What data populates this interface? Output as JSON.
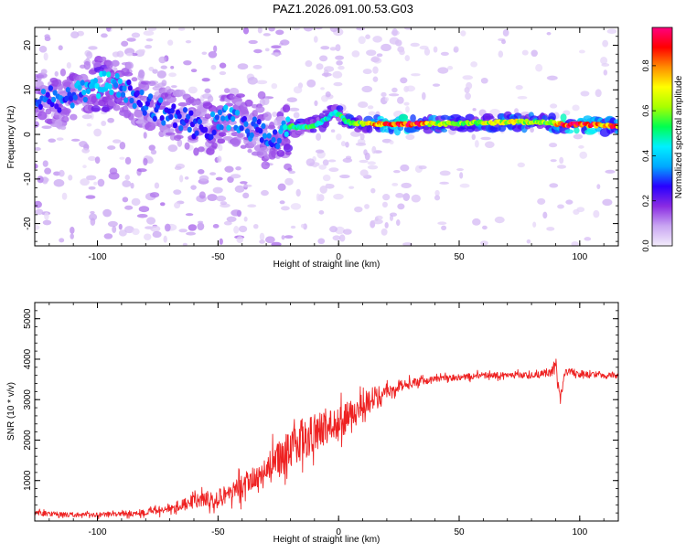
{
  "figure_title": "PAZ1.2026.091.00.53.G03",
  "chart_data": [
    {
      "type": "heatmap",
      "title": "PAZ1.2026.091.00.53.G03",
      "xlabel": "Height of straight line (km)",
      "ylabel": "Frequency (Hz)",
      "xlim": [
        -126,
        116
      ],
      "ylim": [
        -25,
        24
      ],
      "xticks": [
        -100,
        -50,
        0,
        50,
        100
      ],
      "yticks": [
        -20,
        -10,
        0,
        10,
        20
      ],
      "colorbar": {
        "label": "Normalized spectral amplitude",
        "range": [
          0.0,
          0.97
        ],
        "ticks": [
          0.0,
          0.2,
          0.4,
          0.6,
          0.8
        ],
        "colors": [
          "#f3ecfb",
          "#c9a6f2",
          "#8a2be2",
          "#2800ff",
          "#00a8ff",
          "#00f0ff",
          "#00ff50",
          "#a8ff00",
          "#ffff00",
          "#ff8c00",
          "#ff0000",
          "#ff0080"
        ]
      },
      "ridge": {
        "x": [
          -125,
          -120,
          -115,
          -110,
          -105,
          -100,
          -95,
          -90,
          -85,
          -80,
          -75,
          -70,
          -65,
          -60,
          -55,
          -50,
          -45,
          -40,
          -35,
          -30,
          -25,
          -22,
          -20,
          -15,
          -10,
          -5,
          -2,
          0,
          3,
          5,
          10,
          20,
          30,
          40,
          50,
          60,
          70,
          80,
          88,
          92,
          100,
          110,
          116
        ],
        "y": [
          7.5,
          8.5,
          7.0,
          9.0,
          10.0,
          11.0,
          11.5,
          10.5,
          9.0,
          7.0,
          5.5,
          4.5,
          3.5,
          2.0,
          1.0,
          3.0,
          4.0,
          2.5,
          1.0,
          0.0,
          -1.0,
          1.5,
          1.8,
          1.5,
          2.0,
          3.5,
          5.0,
          4.5,
          3.0,
          2.5,
          2.4,
          2.3,
          2.3,
          2.4,
          2.5,
          2.6,
          2.8,
          2.8,
          2.7,
          2.2,
          2.2,
          2.0,
          1.8
        ],
        "amplitude": [
          0.3,
          0.3,
          0.3,
          0.35,
          0.35,
          0.4,
          0.4,
          0.35,
          0.3,
          0.3,
          0.3,
          0.3,
          0.3,
          0.3,
          0.3,
          0.35,
          0.35,
          0.3,
          0.3,
          0.3,
          0.3,
          0.45,
          0.5,
          0.5,
          0.5,
          0.45,
          0.45,
          0.5,
          0.55,
          0.55,
          0.6,
          0.9,
          0.92,
          0.65,
          0.6,
          0.65,
          0.7,
          0.65,
          0.6,
          0.92,
          0.92,
          0.8,
          0.85
        ]
      }
    },
    {
      "type": "line",
      "title": "",
      "xlabel": "Height of straight line (km)",
      "ylabel": "SNR (10 * v/v)",
      "xlim": [
        -126,
        116
      ],
      "ylim": [
        0,
        5400
      ],
      "xticks": [
        -100,
        -50,
        0,
        50,
        100
      ],
      "yticks": [
        1000,
        2000,
        3000,
        4000,
        5000
      ],
      "series": [
        {
          "name": "SNR",
          "color": "#ee2222",
          "x": [
            -125,
            -120,
            -110,
            -100,
            -90,
            -80,
            -75,
            -70,
            -65,
            -60,
            -55,
            -50,
            -45,
            -40,
            -35,
            -30,
            -25,
            -20,
            -18,
            -15,
            -10,
            -5,
            0,
            5,
            10,
            15,
            20,
            25,
            30,
            35,
            40,
            50,
            60,
            70,
            80,
            88,
            90,
            92,
            94,
            100,
            110,
            116
          ],
          "y": [
            200,
            180,
            150,
            160,
            180,
            220,
            270,
            340,
            400,
            480,
            540,
            600,
            700,
            850,
            1000,
            1250,
            1500,
            1750,
            2000,
            2000,
            2200,
            2350,
            2400,
            2650,
            2900,
            3100,
            3250,
            3350,
            3400,
            3450,
            3500,
            3550,
            3600,
            3600,
            3600,
            3650,
            3800,
            3000,
            3700,
            3650,
            3600,
            3600
          ],
          "spread": [
            120,
            110,
            100,
            110,
            120,
            150,
            180,
            220,
            250,
            300,
            350,
            400,
            450,
            550,
            650,
            750,
            850,
            900,
            1100,
            950,
            850,
            800,
            750,
            650,
            520,
            420,
            330,
            260,
            200,
            180,
            160,
            150,
            140,
            140,
            150,
            200,
            350,
            250,
            250,
            180,
            160,
            160
          ]
        }
      ]
    }
  ]
}
